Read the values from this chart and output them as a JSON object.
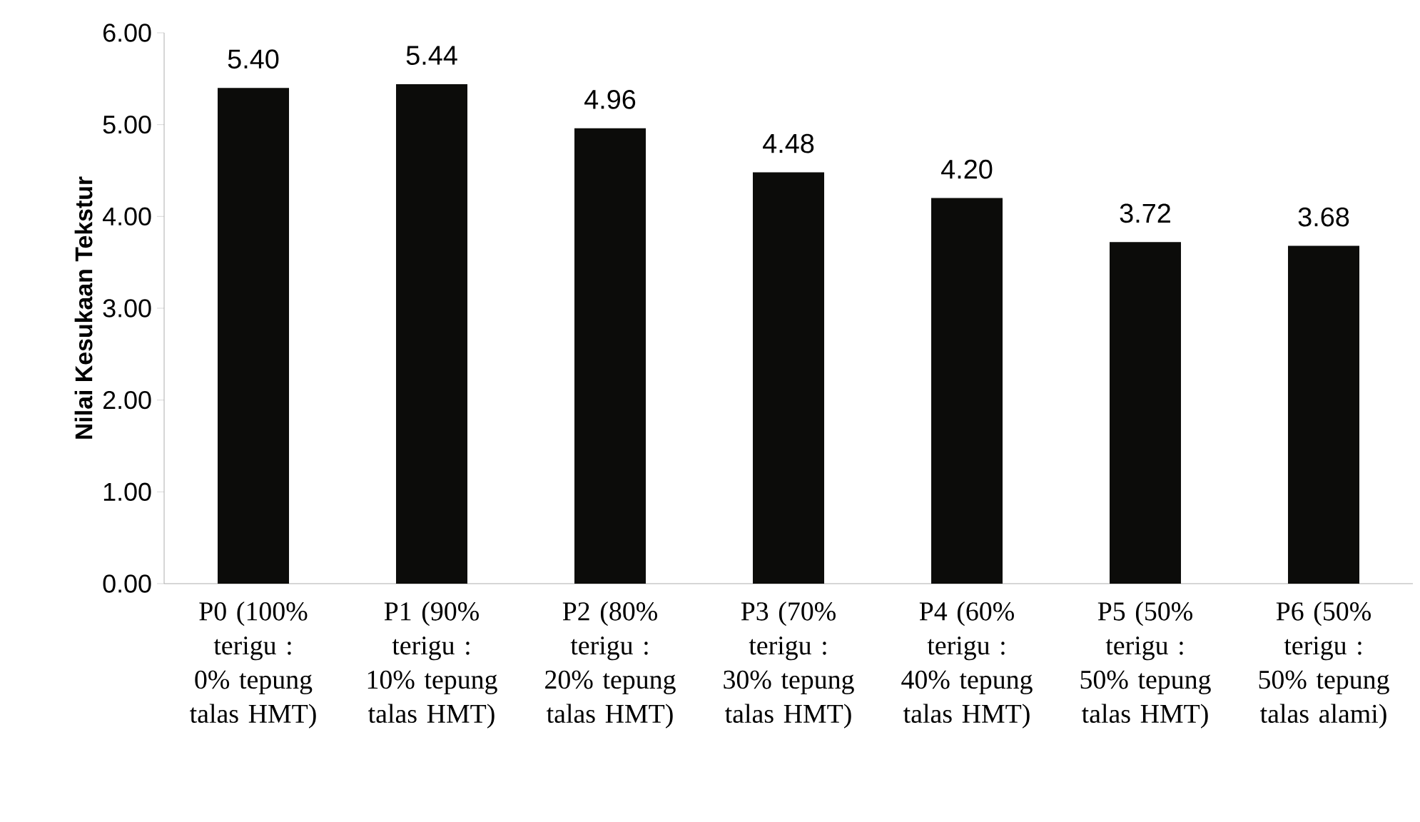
{
  "chart_data": {
    "type": "bar",
    "ylabel": "Nilai Kesukaan Tekstur",
    "categories": [
      "P0 (100% terigu : 0% tepung talas HMT)",
      "P1 (90% terigu : 10% tepung talas HMT)",
      "P2 (80% terigu : 20% tepung talas HMT)",
      "P3 (70% terigu : 30% tepung talas HMT)",
      "P4 (60% terigu : 40% tepung talas HMT)",
      "P5 (50% terigu : 50% tepung talas HMT)",
      "P6 (50% terigu : 50% tepung talas alami)"
    ],
    "values": [
      5.4,
      5.44,
      4.96,
      4.48,
      4.2,
      3.72,
      3.68
    ],
    "value_labels": [
      "5.40",
      "5.44",
      "4.96",
      "4.48",
      "4.20",
      "3.72",
      "3.68"
    ],
    "color": "#0c0c0a",
    "ylim": [
      0,
      6
    ],
    "yticks": [
      {
        "value": 0,
        "label": "0.00"
      },
      {
        "value": 1,
        "label": "1.00"
      },
      {
        "value": 2,
        "label": "2.00"
      },
      {
        "value": 3,
        "label": "3.00"
      },
      {
        "value": 4,
        "label": "4.00"
      },
      {
        "value": 5,
        "label": "5.00"
      },
      {
        "value": 6,
        "label": "6.00"
      }
    ],
    "grid": false
  }
}
